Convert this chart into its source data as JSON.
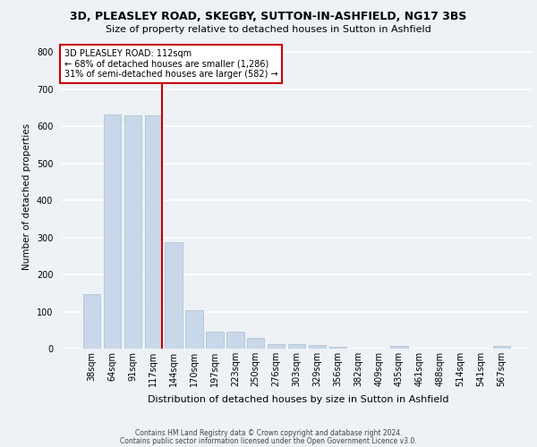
{
  "title_line1": "3D, PLEASLEY ROAD, SKEGBY, SUTTON-IN-ASHFIELD, NG17 3BS",
  "title_line2": "Size of property relative to detached houses in Sutton in Ashfield",
  "xlabel": "Distribution of detached houses by size in Sutton in Ashfield",
  "ylabel": "Number of detached properties",
  "footer_line1": "Contains HM Land Registry data © Crown copyright and database right 2024.",
  "footer_line2": "Contains public sector information licensed under the Open Government Licence v3.0.",
  "annotation_line1": "3D PLEASLEY ROAD: 112sqm",
  "annotation_line2": "← 68% of detached houses are smaller (1,286)",
  "annotation_line3": "31% of semi-detached houses are larger (582) →",
  "bar_color": "#c8d8ea",
  "bar_edge_color": "#aabcce",
  "vline_color": "#cc0000",
  "annotation_box_edge": "#cc0000",
  "categories": [
    "38sqm",
    "64sqm",
    "91sqm",
    "117sqm",
    "144sqm",
    "170sqm",
    "197sqm",
    "223sqm",
    "250sqm",
    "276sqm",
    "303sqm",
    "329sqm",
    "356sqm",
    "382sqm",
    "409sqm",
    "435sqm",
    "461sqm",
    "488sqm",
    "514sqm",
    "541sqm",
    "567sqm"
  ],
  "values": [
    148,
    632,
    630,
    630,
    288,
    103,
    47,
    45,
    30,
    12,
    12,
    10,
    6,
    0,
    0,
    7,
    0,
    0,
    0,
    0,
    8
  ],
  "vline_index": 3,
  "ylim": [
    0,
    820
  ],
  "yticks": [
    0,
    100,
    200,
    300,
    400,
    500,
    600,
    700,
    800
  ],
  "background_color": "#eef2f6",
  "plot_bg_color": "#eef2f6",
  "grid_color": "#ffffff",
  "title1_fontsize": 9,
  "title2_fontsize": 8,
  "ylabel_fontsize": 7.5,
  "xlabel_fontsize": 8,
  "tick_fontsize": 7,
  "annotation_fontsize": 7,
  "footer_fontsize": 5.5
}
